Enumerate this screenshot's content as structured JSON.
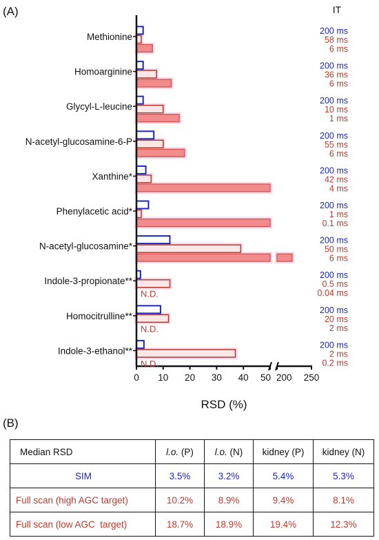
{
  "panel_a_label": "(A)",
  "panel_b_label": "(B)",
  "colors": {
    "sim": "#1b25c8",
    "full_high_fill": "#fde6e6",
    "full_high_stroke": "#b03a2e",
    "full_low_fill": "#f28b8b",
    "full_low_stroke": "#d04a4a",
    "it_full": "#c0392b",
    "halo": "#fcd9e8"
  },
  "chart_data": {
    "type": "bar",
    "orientation": "horizontal",
    "xlabel": "RSD (%)",
    "it_header": "IT",
    "categories": [
      "Methionine",
      "Homoarginine",
      "Glycyl-L-leucine",
      "N-acetyl-glucosamine-6-P",
      "Xanthine*",
      "Phenylacetic acid*",
      "N-acetyl-glucosamine*",
      "Indole-3-propionate**",
      "Homocitrulline**",
      "Indole-3-ethanol**"
    ],
    "series": [
      {
        "key": "sim",
        "values": [
          2.5,
          2.5,
          2.5,
          6.5,
          3.5,
          4.5,
          12.5,
          1.5,
          9,
          2.8
        ],
        "it": [
          "200 ms",
          "200 ms",
          "200 ms",
          "200 ms",
          "200 ms",
          "200 ms",
          "200 ms",
          "200 ms",
          "200 ms",
          "200 ms"
        ]
      },
      {
        "key": "full_high",
        "values": [
          1.8,
          7.5,
          10,
          10,
          5.5,
          1.8,
          39,
          12.5,
          12,
          37
        ],
        "it": [
          "58 ms",
          "36 ms",
          "10 ms",
          "55 ms",
          "42 ms",
          "1 ms",
          "50 ms",
          "0.5 ms",
          "20 ms",
          "2 ms"
        ]
      },
      {
        "key": "full_low",
        "values": [
          6,
          13,
          16,
          18,
          50,
          50,
          222,
          null,
          null,
          null
        ],
        "clipped_at_break": [
          false,
          false,
          false,
          false,
          true,
          true,
          false,
          false,
          false,
          false
        ],
        "it": [
          "6 ms",
          "6 ms",
          "1 ms",
          "6 ms",
          "4 ms",
          "0.1 ms",
          "6 ms",
          "0.04 ms",
          "2 ms",
          "0.2 ms"
        ]
      }
    ],
    "not_detected_label": "N.D.",
    "x_ticks": [
      "0",
      "10",
      "20",
      "30",
      "40",
      "50",
      "200",
      "250"
    ],
    "x_tick_values": [
      0,
      10,
      20,
      30,
      40,
      50,
      200,
      250
    ],
    "x_axis_break": [
      50,
      200
    ],
    "xlim": [
      0,
      250
    ]
  },
  "table": {
    "header": [
      "Median RSD",
      "",
      "(P)",
      "",
      "(N)",
      "kidney (P)",
      "kidney (N)"
    ],
    "header_italic": "l.o.",
    "rows": [
      {
        "label": "SIM",
        "values": [
          "3.5%",
          "3.2%",
          "5.4%",
          "5.3%"
        ]
      },
      {
        "label": "Full scan (high AGC target)",
        "values": [
          "10.2%",
          "8.9%",
          "9.4%",
          "8.1%"
        ]
      },
      {
        "label": "Full scan (low AGC  target)",
        "values": [
          "18.7%",
          "18.9%",
          "19.4%",
          "12.3%"
        ]
      }
    ]
  }
}
